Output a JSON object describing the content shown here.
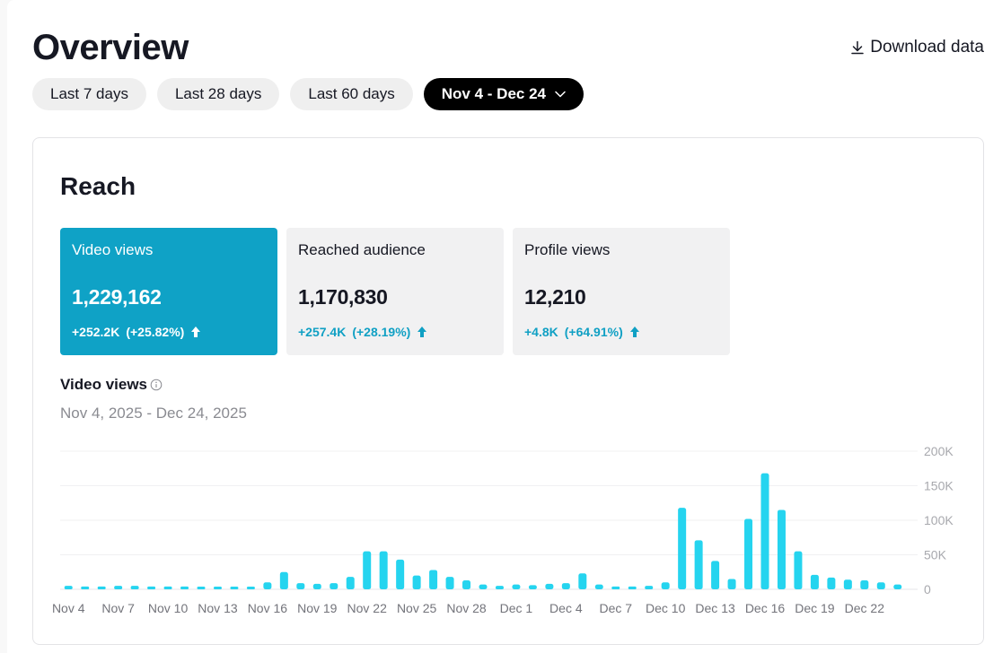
{
  "header": {
    "title": "Overview",
    "download_label": "Download data"
  },
  "date_ranges": [
    {
      "label": "Last 7 days",
      "active": false
    },
    {
      "label": "Last 28 days",
      "active": false
    },
    {
      "label": "Last 60 days",
      "active": false
    },
    {
      "label": "Nov 4 - Dec 24",
      "active": true
    }
  ],
  "icons": {
    "download": "download-icon",
    "dropdown": "chevron-down-icon",
    "trend": "arrow-up-icon",
    "info": "info-icon"
  },
  "colors": {
    "accent": "#0fa2c6",
    "bar": "#25d4ef",
    "positive": "#10a0c4"
  },
  "reach": {
    "title": "Reach",
    "metrics": [
      {
        "label": "Video views",
        "value": "1,229,162",
        "change": "+252.2K",
        "change_pct": "(+25.82%)",
        "selected": true
      },
      {
        "label": "Reached audience",
        "value": "1,170,830",
        "change": "+257.4K",
        "change_pct": "(+28.19%)",
        "selected": false
      },
      {
        "label": "Profile views",
        "value": "12,210",
        "change": "+4.8K",
        "change_pct": "(+64.91%)",
        "selected": false
      }
    ],
    "chart": {
      "title": "Video views",
      "date_range": "Nov 4, 2025 - Dec 24, 2025"
    }
  },
  "chart_data": {
    "type": "bar",
    "title": "Video views",
    "xlabel": "",
    "ylabel": "",
    "ylim": [
      0,
      200000
    ],
    "yticks": [
      "0",
      "50K",
      "100K",
      "150K",
      "200K"
    ],
    "ytick_values": [
      0,
      50000,
      100000,
      150000,
      200000
    ],
    "xtick_labels": [
      "Nov 4",
      "Nov 7",
      "Nov 10",
      "Nov 13",
      "Nov 16",
      "Nov 19",
      "Nov 22",
      "Nov 25",
      "Nov 28",
      "Dec 1",
      "Dec 4",
      "Dec 7",
      "Dec 10",
      "Dec 13",
      "Dec 16",
      "Dec 19",
      "Dec 22"
    ],
    "categories": [
      "Nov 4",
      "Nov 5",
      "Nov 6",
      "Nov 7",
      "Nov 8",
      "Nov 9",
      "Nov 10",
      "Nov 11",
      "Nov 12",
      "Nov 13",
      "Nov 14",
      "Nov 15",
      "Nov 16",
      "Nov 17",
      "Nov 18",
      "Nov 19",
      "Nov 20",
      "Nov 21",
      "Nov 22",
      "Nov 23",
      "Nov 24",
      "Nov 25",
      "Nov 26",
      "Nov 27",
      "Nov 28",
      "Nov 29",
      "Nov 30",
      "Dec 1",
      "Dec 2",
      "Dec 3",
      "Dec 4",
      "Dec 5",
      "Dec 6",
      "Dec 7",
      "Dec 8",
      "Dec 9",
      "Dec 10",
      "Dec 11",
      "Dec 12",
      "Dec 13",
      "Dec 14",
      "Dec 15",
      "Dec 16",
      "Dec 17",
      "Dec 18",
      "Dec 19",
      "Dec 20",
      "Dec 21",
      "Dec 22",
      "Dec 23",
      "Dec 24"
    ],
    "series": [
      {
        "name": "Video views",
        "values": [
          5000,
          4000,
          4000,
          5000,
          5000,
          4000,
          4000,
          4000,
          3000,
          3000,
          3000,
          3000,
          10000,
          25000,
          9000,
          8000,
          9000,
          18000,
          55000,
          55000,
          43000,
          20000,
          28000,
          18000,
          13000,
          7000,
          5000,
          7000,
          6000,
          8000,
          9000,
          23000,
          7000,
          4000,
          4000,
          5000,
          10000,
          118000,
          71000,
          41000,
          15000,
          102000,
          168000,
          115000,
          55000,
          21000,
          17000,
          14000,
          13000,
          10000,
          7000
        ]
      }
    ]
  }
}
